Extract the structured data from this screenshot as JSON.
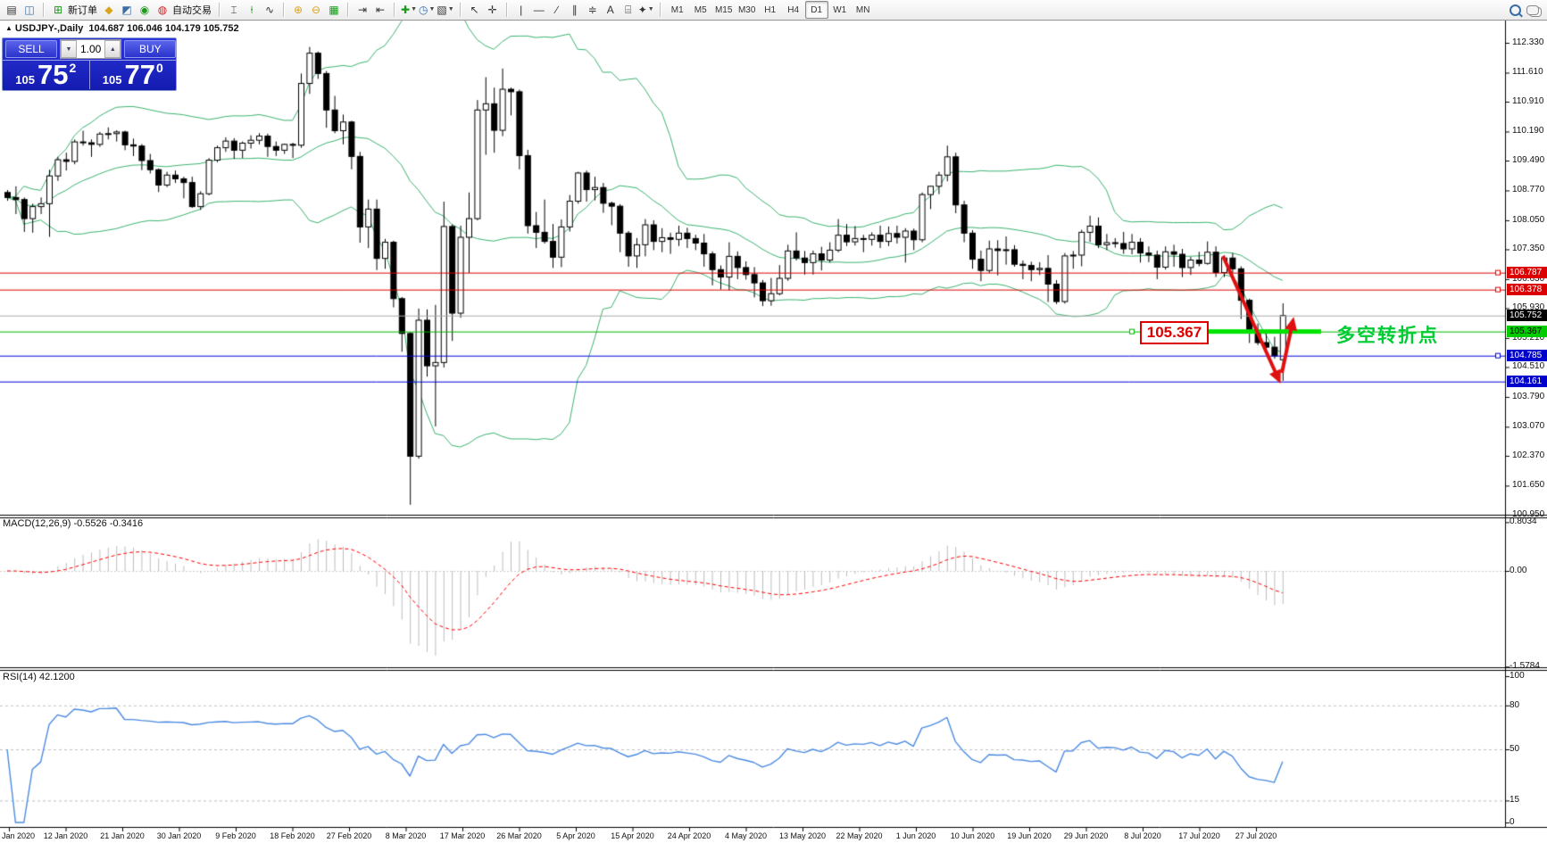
{
  "toolbar": {
    "new_order_label": "新订单",
    "autotrading_label": "自动交易",
    "timeframes": {
      "items": [
        "M1",
        "M5",
        "M15",
        "M30",
        "H1",
        "H4",
        "D1",
        "W1",
        "MN"
      ],
      "active": "D1"
    }
  },
  "symbol_header": {
    "marker": "▲",
    "symbol": "USDJPY-,Daily",
    "ohlc": "104.687 106.046 104.179 105.752"
  },
  "trade_panel": {
    "sell_label": "SELL",
    "buy_label": "BUY",
    "volume": "1.00",
    "sell_price_small": "105",
    "sell_price_big": "75",
    "sell_price_sup": "2",
    "buy_price_small": "105",
    "buy_price_big": "77",
    "buy_price_sup": "0"
  },
  "indicators": {
    "macd_label": "MACD(12,26,9) -0.5526 -0.3416",
    "rsi_label": "RSI(14) 42.1200"
  },
  "annotations": {
    "price_box_text": "105.367",
    "turning_point_text": "多空转折点"
  },
  "axis": {
    "price_ticks": [
      "112.330",
      "111.610",
      "110.910",
      "110.190",
      "109.490",
      "108.770",
      "108.050",
      "107.350",
      "106.630",
      "105.930",
      "105.210",
      "104.510",
      "103.790",
      "103.070",
      "102.370",
      "101.650",
      "100.950"
    ],
    "highlighted_labels": [
      {
        "text": "106.787",
        "price": 106.787,
        "bg": "#dd0000",
        "fg": "#ffffff"
      },
      {
        "text": "106.378",
        "price": 106.378,
        "bg": "#dd0000",
        "fg": "#ffffff"
      },
      {
        "text": "105.752",
        "price": 105.752,
        "bg": "#000000",
        "fg": "#ffffff"
      },
      {
        "text": "105.367",
        "price": 105.367,
        "bg": "#00cc00",
        "fg": "#000000"
      },
      {
        "text": "104.785",
        "price": 104.785,
        "bg": "#0000cc",
        "fg": "#ffffff"
      },
      {
        "text": "104.161",
        "price": 104.161,
        "bg": "#0000cc",
        "fg": "#ffffff"
      }
    ],
    "macd_ticks": [
      {
        "text": "0.8034",
        "v": 0.8034
      },
      {
        "text": "0.00",
        "v": 0
      },
      {
        "text": "-1.5784",
        "v": -1.5784
      }
    ],
    "rsi_ticks": [
      {
        "text": "100",
        "v": 100
      },
      {
        "text": "80",
        "v": 80
      },
      {
        "text": "50",
        "v": 50
      },
      {
        "text": "15",
        "v": 15
      },
      {
        "text": "0",
        "v": 0
      }
    ],
    "date_ticks": [
      "Jan 2020",
      "12 Jan 2020",
      "21 Jan 2020",
      "30 Jan 2020",
      "9 Feb 2020",
      "18 Feb 2020",
      "27 Feb 2020",
      "8 Mar 2020",
      "17 Mar 2020",
      "26 Mar 2020",
      "5 Apr 2020",
      "15 Apr 2020",
      "24 Apr 2020",
      "4 May 2020",
      "13 May 2020",
      "22 May 2020",
      "1 Jun 2020",
      "10 Jun 2020",
      "19 Jun 2020",
      "29 Jun 2020",
      "8 Jul 2020",
      "17 Jul 2020",
      "27 Jul 2020"
    ]
  },
  "colors": {
    "bull": "#ffffff",
    "bear": "#000000",
    "outline": "#000000",
    "bollinger": "#3cb371",
    "rsi_line": "#4c8be2",
    "macd_hist": "#bdbdbd",
    "macd_signal": "#ff0000",
    "hline_red": "#dd0000",
    "hline_blue": "#0000dd",
    "hline_green": "#00b400",
    "lime_bar": "#00e400",
    "current_price": "#aaaaaa",
    "annotation_green": "#00cc33",
    "annotation_red": "#dd0000",
    "panel_blue": "#1f28c8"
  },
  "chart_data": {
    "type": "candlestick",
    "symbol": "USDJPY-",
    "timeframe": "Daily",
    "last_ohlc": [
      104.687,
      106.046,
      104.179,
      105.752
    ],
    "ylim": [
      100.95,
      112.87
    ],
    "bollinger": {
      "period": 20,
      "deviation": 2
    },
    "macd": {
      "fast": 12,
      "slow": 26,
      "signal": 9,
      "current_macd": -0.5526,
      "current_signal": -0.3416,
      "scale_max": 0.8034,
      "scale_min": -1.5784
    },
    "rsi": {
      "period": 14,
      "current": 42.12,
      "levels": [
        80,
        50,
        15
      ]
    },
    "hlines": [
      {
        "price": 106.787,
        "color": "#dd0000"
      },
      {
        "price": 106.378,
        "color": "#dd0000"
      },
      {
        "price": 105.367,
        "color": "#00b400"
      },
      {
        "price": 104.785,
        "color": "#0000dd"
      },
      {
        "price": 104.161,
        "color": "#0000dd"
      }
    ],
    "current_price": 105.752,
    "lime_segment": {
      "price": 105.367
    },
    "candles": [
      [
        108.72,
        108.78,
        108.52,
        108.6
      ],
      [
        108.6,
        108.87,
        108.2,
        108.55
      ],
      [
        108.55,
        108.6,
        107.77,
        108.09
      ],
      [
        108.09,
        108.45,
        107.75,
        108.38
      ],
      [
        108.38,
        108.6,
        108.2,
        108.45
      ],
      [
        108.45,
        109.27,
        107.65,
        109.12
      ],
      [
        109.12,
        109.58,
        109.0,
        109.51
      ],
      [
        109.51,
        109.68,
        109.25,
        109.47
      ],
      [
        109.47,
        110.0,
        109.4,
        109.94
      ],
      [
        109.94,
        110.21,
        109.85,
        109.92
      ],
      [
        109.92,
        110.0,
        109.58,
        109.88
      ],
      [
        109.88,
        110.18,
        109.82,
        110.13
      ],
      [
        110.13,
        110.29,
        110.0,
        110.14
      ],
      [
        110.14,
        110.22,
        109.95,
        110.18
      ],
      [
        110.18,
        110.21,
        109.74,
        109.87
      ],
      [
        109.87,
        110.02,
        109.6,
        109.84
      ],
      [
        109.84,
        109.89,
        109.26,
        109.49
      ],
      [
        109.49,
        109.65,
        109.18,
        109.27
      ],
      [
        109.27,
        109.3,
        108.73,
        108.9
      ],
      [
        108.9,
        109.22,
        108.85,
        109.14
      ],
      [
        109.14,
        109.25,
        108.95,
        109.05
      ],
      [
        109.05,
        109.1,
        108.58,
        108.96
      ],
      [
        108.96,
        109.1,
        108.35,
        108.38
      ],
      [
        108.38,
        108.75,
        108.3,
        108.69
      ],
      [
        108.69,
        109.55,
        108.65,
        109.5
      ],
      [
        109.5,
        109.85,
        109.45,
        109.8
      ],
      [
        109.8,
        110.05,
        109.7,
        109.96
      ],
      [
        109.96,
        110.03,
        109.53,
        109.74
      ],
      [
        109.74,
        109.95,
        109.55,
        109.91
      ],
      [
        109.91,
        110.1,
        109.78,
        109.98
      ],
      [
        109.98,
        110.15,
        109.88,
        110.08
      ],
      [
        110.08,
        110.14,
        109.58,
        109.83
      ],
      [
        109.83,
        109.95,
        109.6,
        109.74
      ],
      [
        109.74,
        109.9,
        109.65,
        109.88
      ],
      [
        109.88,
        109.92,
        109.55,
        109.86
      ],
      [
        109.86,
        111.59,
        109.8,
        111.35
      ],
      [
        111.35,
        112.23,
        111.1,
        112.08
      ],
      [
        112.08,
        112.12,
        111.46,
        111.59
      ],
      [
        111.59,
        111.65,
        110.28,
        110.71
      ],
      [
        110.71,
        111.05,
        110.15,
        110.21
      ],
      [
        110.21,
        110.6,
        109.88,
        110.42
      ],
      [
        110.42,
        110.45,
        109.28,
        109.59
      ],
      [
        109.59,
        109.7,
        107.51,
        107.89
      ],
      [
        107.89,
        108.55,
        107.38,
        108.32
      ],
      [
        108.32,
        108.55,
        106.85,
        107.13
      ],
      [
        107.13,
        107.6,
        106.88,
        107.52
      ],
      [
        107.52,
        107.56,
        105.95,
        106.16
      ],
      [
        106.16,
        106.2,
        104.88,
        105.32
      ],
      [
        105.32,
        105.35,
        101.19,
        102.36
      ],
      [
        102.36,
        105.92,
        102.3,
        105.64
      ],
      [
        105.64,
        105.9,
        104.28,
        104.54
      ],
      [
        104.54,
        106.01,
        103.08,
        104.62
      ],
      [
        104.62,
        108.5,
        104.5,
        107.9
      ],
      [
        107.9,
        107.95,
        105.14,
        105.81
      ],
      [
        105.81,
        107.92,
        105.7,
        107.64
      ],
      [
        107.64,
        108.72,
        106.78,
        108.09
      ],
      [
        108.09,
        110.95,
        108.05,
        110.71
      ],
      [
        110.71,
        111.5,
        109.63,
        110.86
      ],
      [
        110.86,
        111.25,
        109.68,
        110.22
      ],
      [
        110.22,
        111.71,
        110.08,
        111.21
      ],
      [
        111.21,
        111.25,
        110.58,
        111.15
      ],
      [
        111.15,
        111.2,
        109.28,
        109.61
      ],
      [
        109.61,
        109.75,
        107.73,
        107.92
      ],
      [
        107.92,
        108.25,
        107.38,
        107.76
      ],
      [
        107.76,
        108.55,
        107.49,
        107.54
      ],
      [
        107.54,
        107.96,
        106.9,
        107.16
      ],
      [
        107.16,
        108.07,
        106.92,
        107.89
      ],
      [
        107.89,
        108.66,
        107.78,
        108.51
      ],
      [
        108.51,
        109.22,
        108.45,
        109.19
      ],
      [
        109.19,
        109.25,
        108.5,
        108.79
      ],
      [
        108.79,
        109.1,
        108.53,
        108.84
      ],
      [
        108.84,
        108.95,
        108.23,
        108.46
      ],
      [
        108.46,
        108.5,
        107.93,
        108.39
      ],
      [
        108.39,
        108.44,
        107.28,
        107.74
      ],
      [
        107.74,
        107.79,
        106.93,
        107.19
      ],
      [
        107.19,
        107.62,
        106.9,
        107.46
      ],
      [
        107.46,
        108.08,
        107.18,
        107.94
      ],
      [
        107.94,
        108.05,
        107.33,
        107.54
      ],
      [
        107.54,
        107.86,
        107.28,
        107.63
      ],
      [
        107.63,
        107.75,
        107.24,
        107.59
      ],
      [
        107.59,
        107.92,
        107.43,
        107.74
      ],
      [
        107.74,
        107.87,
        107.38,
        107.61
      ],
      [
        107.61,
        107.7,
        107.33,
        107.5
      ],
      [
        107.5,
        107.72,
        106.93,
        107.24
      ],
      [
        107.24,
        107.3,
        106.48,
        106.86
      ],
      [
        106.86,
        106.96,
        106.38,
        106.68
      ],
      [
        106.68,
        107.52,
        106.36,
        107.18
      ],
      [
        107.18,
        107.3,
        106.63,
        106.91
      ],
      [
        106.91,
        107.06,
        106.62,
        106.74
      ],
      [
        106.74,
        106.92,
        106.19,
        106.54
      ],
      [
        106.54,
        106.61,
        105.98,
        106.11
      ],
      [
        106.11,
        106.66,
        105.99,
        106.28
      ],
      [
        106.28,
        106.97,
        106.24,
        106.65
      ],
      [
        106.65,
        107.46,
        106.59,
        107.31
      ],
      [
        107.31,
        107.76,
        107.08,
        107.14
      ],
      [
        107.14,
        107.31,
        106.74,
        107.03
      ],
      [
        107.03,
        107.32,
        106.74,
        107.24
      ],
      [
        107.24,
        107.41,
        106.84,
        107.09
      ],
      [
        107.09,
        107.52,
        107.03,
        107.33
      ],
      [
        107.33,
        108.08,
        107.28,
        107.69
      ],
      [
        107.69,
        107.96,
        107.43,
        107.53
      ],
      [
        107.53,
        107.91,
        107.44,
        107.61
      ],
      [
        107.61,
        107.7,
        107.28,
        107.59
      ],
      [
        107.59,
        107.76,
        107.44,
        107.69
      ],
      [
        107.69,
        107.92,
        107.38,
        107.54
      ],
      [
        107.54,
        107.9,
        107.43,
        107.73
      ],
      [
        107.73,
        107.92,
        107.49,
        107.64
      ],
      [
        107.64,
        107.86,
        107.03,
        107.79
      ],
      [
        107.79,
        107.85,
        107.33,
        107.58
      ],
      [
        107.58,
        108.72,
        107.52,
        108.67
      ],
      [
        108.67,
        108.88,
        108.32,
        108.87
      ],
      [
        108.87,
        109.22,
        108.68,
        109.14
      ],
      [
        109.14,
        109.85,
        108.99,
        109.58
      ],
      [
        109.58,
        109.68,
        108.22,
        108.42
      ],
      [
        108.42,
        108.52,
        107.52,
        107.74
      ],
      [
        107.74,
        107.81,
        106.88,
        107.11
      ],
      [
        107.11,
        107.32,
        106.58,
        106.84
      ],
      [
        106.84,
        107.56,
        106.78,
        107.36
      ],
      [
        107.36,
        107.57,
        106.72,
        107.32
      ],
      [
        107.32,
        107.66,
        106.98,
        107.34
      ],
      [
        107.34,
        107.45,
        106.93,
        106.99
      ],
      [
        106.99,
        107.08,
        106.63,
        106.96
      ],
      [
        106.96,
        107.05,
        106.58,
        106.86
      ],
      [
        106.86,
        107.04,
        106.73,
        106.89
      ],
      [
        106.89,
        107.21,
        106.08,
        106.51
      ],
      [
        106.51,
        106.61,
        106.03,
        106.09
      ],
      [
        106.09,
        107.26,
        106.04,
        107.19
      ],
      [
        107.19,
        107.31,
        106.88,
        107.21
      ],
      [
        107.21,
        107.82,
        106.94,
        107.76
      ],
      [
        107.76,
        108.16,
        107.53,
        107.91
      ],
      [
        107.91,
        108.12,
        107.38,
        107.46
      ],
      [
        107.46,
        107.72,
        107.33,
        107.51
      ],
      [
        107.51,
        107.62,
        107.39,
        107.49
      ],
      [
        107.49,
        107.77,
        107.24,
        107.36
      ],
      [
        107.36,
        107.72,
        107.23,
        107.52
      ],
      [
        107.52,
        107.62,
        107.03,
        107.26
      ],
      [
        107.26,
        107.42,
        107.04,
        107.21
      ],
      [
        107.21,
        107.32,
        106.63,
        106.92
      ],
      [
        106.92,
        107.42,
        106.86,
        107.29
      ],
      [
        107.29,
        107.46,
        106.93,
        107.23
      ],
      [
        107.23,
        107.36,
        106.68,
        106.91
      ],
      [
        106.91,
        107.17,
        106.73,
        107.09
      ],
      [
        107.09,
        107.29,
        106.94,
        107.01
      ],
      [
        107.01,
        107.54,
        106.98,
        107.28
      ],
      [
        107.28,
        107.42,
        106.68,
        106.79
      ],
      [
        106.79,
        107.21,
        106.68,
        107.14
      ],
      [
        107.14,
        107.26,
        106.77,
        106.88
      ],
      [
        106.88,
        106.94,
        105.67,
        106.12
      ],
      [
        106.12,
        106.16,
        105.09,
        105.36
      ],
      [
        105.36,
        105.56,
        105.04,
        105.1
      ],
      [
        105.1,
        105.31,
        104.9,
        104.99
      ],
      [
        104.99,
        105.24,
        104.71,
        104.78
      ],
      [
        104.687,
        106.046,
        104.179,
        105.752
      ]
    ]
  }
}
